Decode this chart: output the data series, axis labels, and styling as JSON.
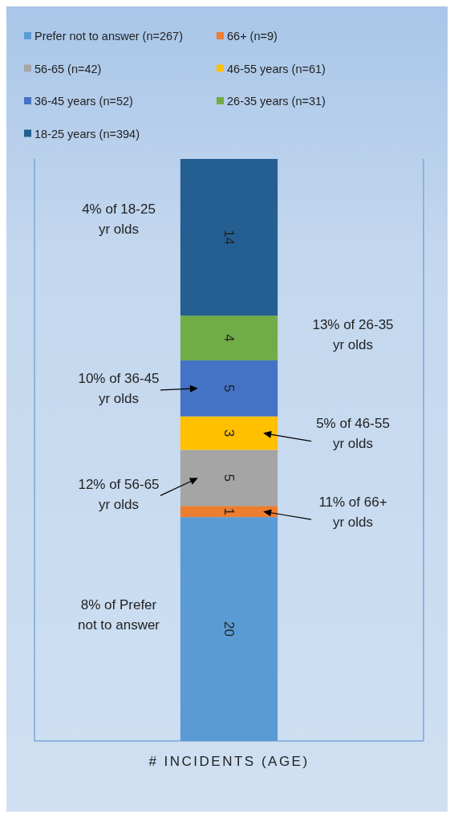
{
  "chart_data": {
    "type": "bar",
    "stacked": true,
    "categories": [
      null
    ],
    "xlabel": "# INCIDENTS (AGE)",
    "legend": "top",
    "data_labels": true,
    "series": [
      {
        "name": "Prefer not to answer (n=267)",
        "color": "#5b9bd5",
        "values": [
          20
        ]
      },
      {
        "name": "66+ (n=9)",
        "color": "#ed7d31",
        "values": [
          1
        ]
      },
      {
        "name": "56-65 (n=42)",
        "color": "#a5a5a5",
        "values": [
          5
        ]
      },
      {
        "name": "46-55 years (n=61)",
        "color": "#ffc000",
        "values": [
          3
        ]
      },
      {
        "name": "36-45 years (n=52)",
        "color": "#4472c4",
        "values": [
          5
        ]
      },
      {
        "name": "26-35 years (n=31)",
        "color": "#70ad47",
        "values": [
          4
        ]
      },
      {
        "name": "18-25 years (n=394)",
        "color": "#255e91",
        "values": [
          14
        ]
      }
    ],
    "annotations": [
      "4% of 18-25 yr olds",
      "13% of 26-35 yr olds",
      "10% of 36-45 yr olds",
      "5% of 46-55 yr olds",
      "12% of 56-65 yr olds",
      "11% of 66+ yr olds",
      "8% of Prefer not to answer"
    ]
  }
}
